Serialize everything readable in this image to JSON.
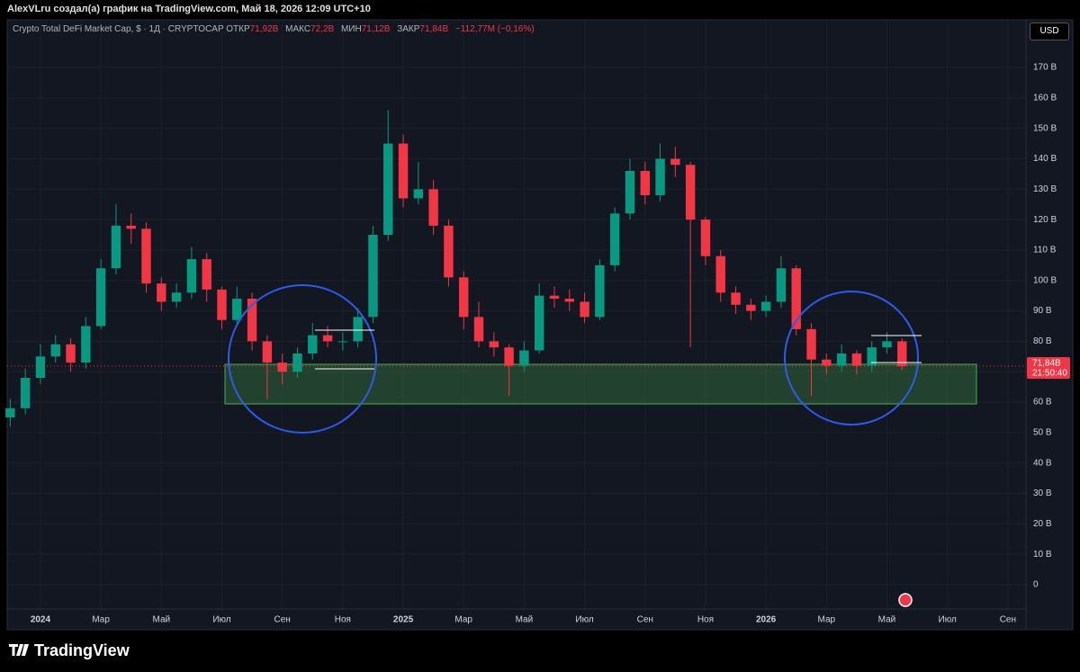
{
  "header": "AlexVLru создал(а) график на TradingView.com, Май 18, 2026 12:09 UTC+10",
  "legend": {
    "symbol": "Crypto Total DeFi Market Cap, $ · 1Д · CRYPTOCAP",
    "open_label": "ОТКР",
    "open": "71,92B",
    "high_label": "МАКС",
    "high": "72,2B",
    "low_label": "МИН",
    "low": "71,12B",
    "close_label": "ЗАКР",
    "close": "71,84B",
    "change": "−112,77M (−0,16%)"
  },
  "currency": "USD",
  "price_tag": {
    "price": "71,84B",
    "countdown": "21:50:40"
  },
  "brand": "TradingView",
  "chart_data": {
    "type": "candlestick",
    "ylim": [
      -14.8,
      177.4
    ],
    "xlim": [
      -1.1,
      32.6
    ],
    "yticks": [
      0,
      {
        "value": 10,
        "label": "10 B"
      },
      {
        "value": 20,
        "label": "20 B"
      },
      {
        "value": 30,
        "label": "30 B"
      },
      {
        "value": 40,
        "label": "40 B"
      },
      {
        "value": 50,
        "label": "50 B"
      },
      {
        "value": 60,
        "label": "60 B"
      },
      {
        "value": 70,
        "label": "70 B"
      },
      {
        "value": 80,
        "label": "80 B"
      },
      {
        "value": 90,
        "label": "90 B"
      },
      {
        "value": 100,
        "label": "100 B"
      },
      {
        "value": 110,
        "label": "110 B"
      },
      {
        "value": 120,
        "label": "120 B"
      },
      {
        "value": 130,
        "label": "130 B"
      },
      {
        "value": 140,
        "label": "140 B"
      },
      {
        "value": 150,
        "label": "150 B"
      },
      {
        "value": 160,
        "label": "160 B"
      },
      {
        "value": 170,
        "label": "170 B"
      }
    ],
    "xticks": [
      {
        "value": 0,
        "label": "2024"
      },
      {
        "value": 2,
        "label": "Мар"
      },
      {
        "value": 4,
        "label": "Май"
      },
      {
        "value": 6,
        "label": "Июл"
      },
      {
        "value": 8,
        "label": "Сен"
      },
      {
        "value": 10,
        "label": "Ноя"
      },
      {
        "value": 12,
        "label": "2025"
      },
      {
        "value": 14,
        "label": "Мар"
      },
      {
        "value": 16,
        "label": "Май"
      },
      {
        "value": 18,
        "label": "Июл"
      },
      {
        "value": 20,
        "label": "Сен"
      },
      {
        "value": 22,
        "label": "Ноя"
      },
      {
        "value": 24,
        "label": "2026"
      },
      {
        "value": 26,
        "label": "Мар"
      },
      {
        "value": 28,
        "label": "Май"
      },
      {
        "value": 30,
        "label": "Июл"
      },
      {
        "value": 32,
        "label": "Сен"
      }
    ],
    "grid": true,
    "up_color": "#089981",
    "down_color": "#f23645",
    "last_close": 71.84,
    "series": [
      {
        "x": [
          -1,
          -0.5,
          0,
          0.5,
          1,
          1.5,
          2,
          2.5,
          3,
          3.5,
          4,
          4.5,
          5,
          5.5,
          6,
          6.5,
          7,
          7.5,
          8,
          8.5,
          9,
          9.5,
          10,
          10.5,
          11,
          11.5,
          12,
          12.5,
          13,
          13.5,
          14,
          14.5,
          15,
          15.5,
          16,
          16.5,
          17,
          17.5,
          18,
          18.5,
          19,
          19.5,
          20,
          20.5,
          21,
          21.5,
          22,
          22.5,
          23,
          23.5,
          24,
          24.5,
          25,
          25.5,
          26,
          26.5,
          27,
          27.5,
          28,
          28.5
        ],
        "open": [
          55,
          58,
          68,
          75,
          79,
          73,
          85,
          104,
          118,
          117,
          99,
          93,
          96,
          107,
          97,
          87,
          94,
          80,
          73,
          70,
          76,
          82,
          80,
          80,
          88,
          115,
          145,
          127,
          130,
          118,
          101,
          88,
          80,
          78,
          72,
          77,
          95,
          94,
          93,
          88,
          105,
          122,
          136,
          128,
          140,
          138,
          120,
          108,
          96,
          92,
          90,
          93,
          104,
          84,
          74,
          72,
          76,
          72,
          78,
          80
        ],
        "high": [
          61,
          71,
          79,
          82,
          81,
          88,
          107,
          125,
          122,
          119,
          101,
          99,
          111,
          109,
          98,
          98,
          96,
          82,
          76,
          78,
          86,
          85,
          83,
          91,
          118,
          156,
          148,
          139,
          133,
          120,
          103,
          93,
          83,
          79,
          80,
          99,
          98,
          97,
          96,
          107,
          124,
          140,
          139,
          145,
          144,
          139,
          121,
          110,
          98,
          94,
          95,
          108,
          105,
          86,
          76,
          79,
          77,
          80,
          83,
          81
        ],
        "low": [
          52,
          56,
          66,
          73,
          70,
          71,
          84,
          102,
          112,
          96,
          90,
          91,
          94,
          93,
          84,
          85,
          77,
          61,
          66,
          68,
          74,
          78,
          77,
          78,
          86,
          113,
          124,
          125,
          115,
          98,
          84,
          78,
          75,
          62,
          70,
          76,
          91,
          90,
          86,
          87,
          103,
          120,
          125,
          126,
          134,
          78,
          105,
          93,
          89,
          87,
          88,
          91,
          82,
          62,
          69,
          70,
          69,
          70,
          76,
          70.5
        ],
        "close": [
          58,
          68,
          75,
          79,
          73,
          85,
          104,
          118,
          117,
          99,
          93,
          96,
          107,
          97,
          87,
          94,
          80,
          73,
          70,
          76,
          82,
          80,
          80,
          88,
          115,
          145,
          127,
          130,
          118,
          101,
          88,
          80,
          78,
          72,
          77,
          95,
          94,
          93,
          88,
          105,
          122,
          136,
          128,
          140,
          138,
          120,
          108,
          96,
          92,
          90,
          93,
          104,
          84,
          74,
          72,
          76,
          72,
          78,
          80,
          71.84
        ]
      }
    ]
  }
}
